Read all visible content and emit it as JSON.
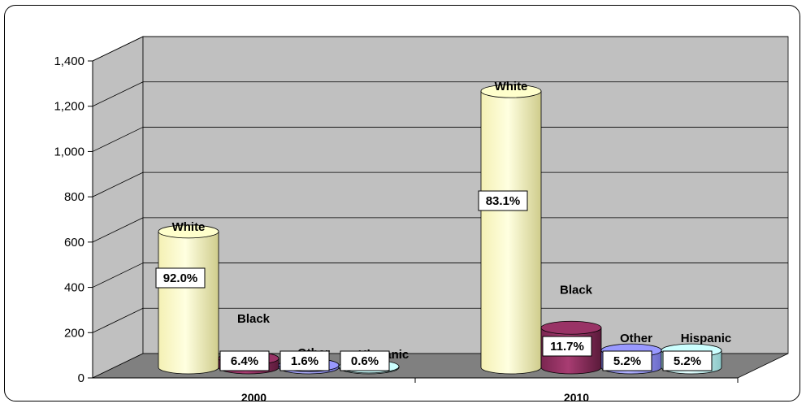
{
  "chart_data": {
    "type": "bar",
    "style": "3d-cylinder",
    "categories": [
      "2000",
      "2010"
    ],
    "series": [
      {
        "name": "White",
        "values": [
          600,
          1220
        ],
        "color": "#FFFFCC",
        "labels": [
          "92.0%",
          "83.1%"
        ]
      },
      {
        "name": "Black",
        "values": [
          40,
          175
        ],
        "color": "#993366",
        "labels": [
          "6.4%",
          "11.7%"
        ]
      },
      {
        "name": "Other",
        "values": [
          10,
          75
        ],
        "color": "#9999FF",
        "labels": [
          "1.6%",
          "5.2%"
        ]
      },
      {
        "name": "Hispanic",
        "values": [
          4,
          75
        ],
        "color": "#CCFFFF",
        "labels": [
          "0.6%",
          "5.2%"
        ]
      }
    ],
    "yticks": [
      "0",
      "200",
      "400",
      "600",
      "800",
      "1,000",
      "1,200",
      "1,400"
    ],
    "ylim": [
      0,
      1400
    ],
    "grid": true,
    "wall_color": "#C0C0C0",
    "floor_color": "#808080"
  }
}
